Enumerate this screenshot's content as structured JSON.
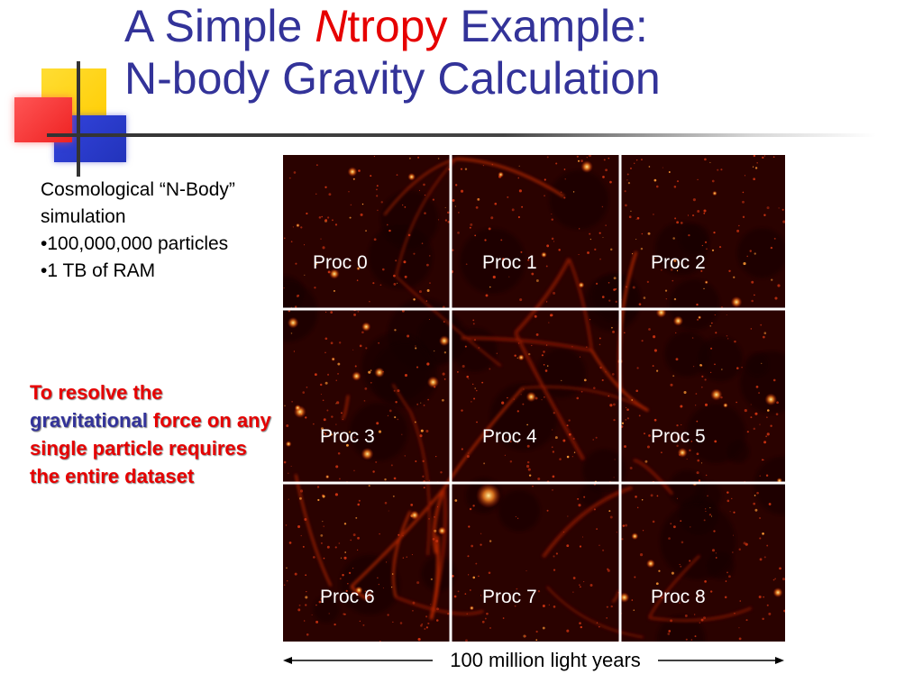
{
  "title": {
    "line1_part1": "A Simple ",
    "line1_n": "N",
    "line1_tropy": "tropy",
    "line1_part2": " Example:",
    "line2": "N-body Gravity Calculation"
  },
  "bullets": {
    "line1": "Cosmological “N-Body”",
    "line2": "simulation",
    "line3": "•100,000,000 particles",
    "line4": "•1 TB of RAM"
  },
  "callout": {
    "part1": "To resolve the ",
    "part2": "gravitational",
    "part3": " force on any single particle requires the entire dataset"
  },
  "procs": [
    "Proc 0",
    "Proc 1",
    "Proc 2",
    "Proc 3",
    "Proc 4",
    "Proc 5",
    "Proc 6",
    "Proc 7",
    "Proc 8"
  ],
  "scale_label": "100 million light years",
  "colors": {
    "title_blue": "#333399",
    "accent_red": "#e60000",
    "deco_yellow": "#ffcc00",
    "deco_blue": "#3333cc",
    "deco_red": "#ff3333"
  }
}
